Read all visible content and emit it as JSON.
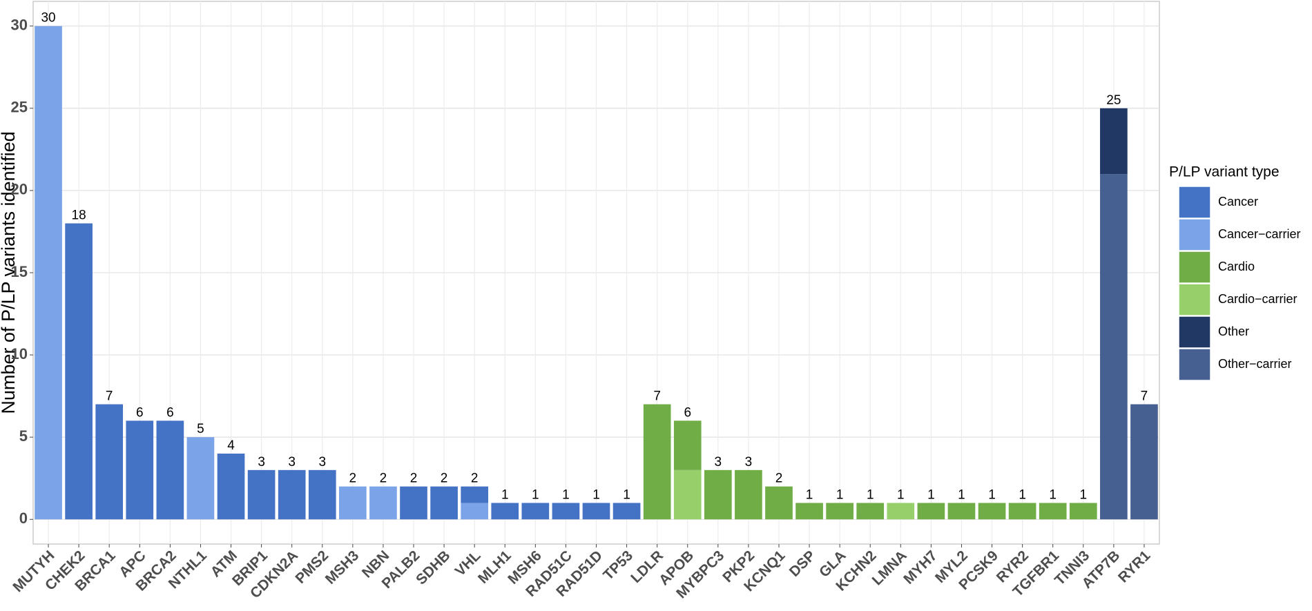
{
  "chart_data": {
    "type": "bar",
    "stacked": true,
    "y_label": "Number of P/LP variants identified",
    "legend_title": "P/LP variant type",
    "categories": [
      "MUTYH",
      "CHEK2",
      "BRCA1",
      "APC",
      "BRCA2",
      "NTHL1",
      "ATM",
      "BRIP1",
      "CDKN2A",
      "PMS2",
      "MSH3",
      "NBN",
      "PALB2",
      "SDHB",
      "VHL",
      "MLH1",
      "MSH6",
      "RAD51C",
      "RAD51D",
      "TP53",
      "LDLR",
      "APOB",
      "MYBPC3",
      "PKP2",
      "KCNQ1",
      "DSP",
      "GLA",
      "KCHN2",
      "LMNA",
      "MYH7",
      "MYL2",
      "PCSK9",
      "RYR2",
      "TGFBR1",
      "TNNI3",
      "ATP7B",
      "RYR1"
    ],
    "series": [
      {
        "name": "Cancer",
        "color": "#4472c4",
        "values": [
          0,
          18,
          7,
          6,
          6,
          0,
          4,
          3,
          3,
          3,
          0,
          0,
          2,
          2,
          1,
          1,
          1,
          1,
          1,
          1,
          0,
          0,
          0,
          0,
          0,
          0,
          0,
          0,
          0,
          0,
          0,
          0,
          0,
          0,
          0,
          0,
          0
        ]
      },
      {
        "name": "Cancer−carrier",
        "color": "#7ba3e8",
        "values": [
          30,
          0,
          0,
          0,
          0,
          5,
          0,
          0,
          0,
          0,
          2,
          2,
          0,
          0,
          1,
          0,
          0,
          0,
          0,
          0,
          0,
          0,
          0,
          0,
          0,
          0,
          0,
          0,
          0,
          0,
          0,
          0,
          0,
          0,
          0,
          0,
          0
        ]
      },
      {
        "name": "Cardio",
        "color": "#70ad47",
        "values": [
          0,
          0,
          0,
          0,
          0,
          0,
          0,
          0,
          0,
          0,
          0,
          0,
          0,
          0,
          0,
          0,
          0,
          0,
          0,
          0,
          7,
          3,
          3,
          3,
          2,
          1,
          1,
          1,
          0,
          1,
          1,
          1,
          1,
          1,
          1,
          0,
          0
        ]
      },
      {
        "name": "Cardio−carrier",
        "color": "#97d06b",
        "values": [
          0,
          0,
          0,
          0,
          0,
          0,
          0,
          0,
          0,
          0,
          0,
          0,
          0,
          0,
          0,
          0,
          0,
          0,
          0,
          0,
          0,
          3,
          0,
          0,
          0,
          0,
          0,
          0,
          1,
          0,
          0,
          0,
          0,
          0,
          0,
          0,
          0
        ]
      },
      {
        "name": "Other",
        "color": "#213864",
        "values": [
          0,
          0,
          0,
          0,
          0,
          0,
          0,
          0,
          0,
          0,
          0,
          0,
          0,
          0,
          0,
          0,
          0,
          0,
          0,
          0,
          0,
          0,
          0,
          0,
          0,
          0,
          0,
          0,
          0,
          0,
          0,
          0,
          0,
          0,
          0,
          4,
          0
        ]
      },
      {
        "name": "Other−carrier",
        "color": "#476092",
        "values": [
          0,
          0,
          0,
          0,
          0,
          0,
          0,
          0,
          0,
          0,
          0,
          0,
          0,
          0,
          0,
          0,
          0,
          0,
          0,
          0,
          0,
          0,
          0,
          0,
          0,
          0,
          0,
          0,
          0,
          0,
          0,
          0,
          0,
          0,
          0,
          21,
          7
        ]
      }
    ],
    "totals": [
      30,
      18,
      7,
      6,
      6,
      5,
      4,
      3,
      3,
      3,
      2,
      2,
      2,
      2,
      2,
      1,
      1,
      1,
      1,
      1,
      7,
      6,
      3,
      3,
      2,
      1,
      1,
      1,
      1,
      1,
      1,
      1,
      1,
      1,
      1,
      25,
      7
    ],
    "ylim": [
      -1.5,
      31.5
    ],
    "yticks": [
      0,
      5,
      10,
      15,
      20,
      25,
      30
    ],
    "grid": true,
    "legend": "right"
  }
}
